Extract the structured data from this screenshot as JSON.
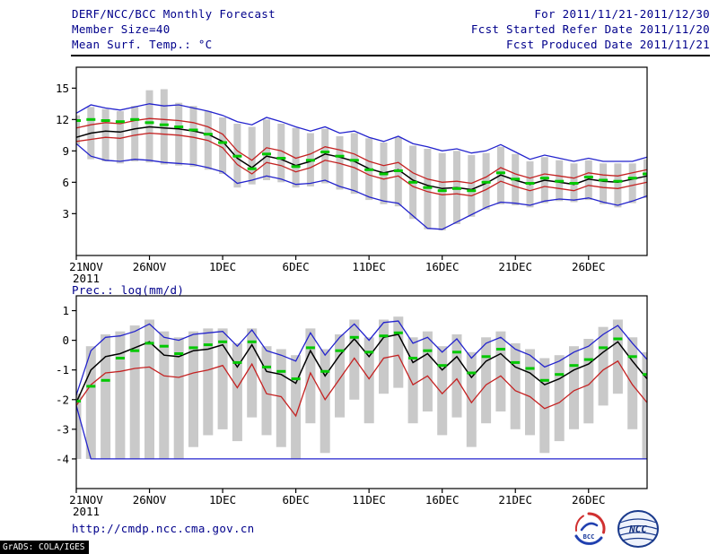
{
  "header": {
    "title": "DERF/NCC/BCC Monthly Forecast",
    "member_size": "Member Size=40",
    "forecast_range": "For 2011/11/21-2011/12/30",
    "refer_date": "Fcst Started Refer Date 2011/11/20",
    "produced_date": "Fcst Produced Date 2011/11/21"
  },
  "footer": {
    "url": "http://cmdp.ncc.cma.gov.cn",
    "grads_stamp": "GrADS: COLA/IGES",
    "logo_bcc": "BCC",
    "logo_ncc": "NCC"
  },
  "colors": {
    "header_text": "#00008b",
    "axis_text": "#000000",
    "envelope_blue": "#2323cd",
    "quartile_red": "#c42222",
    "mean_black": "#000000",
    "marker_green": "#00c800",
    "spread_gray": "#c9c9c9"
  },
  "chart_data": [
    {
      "type": "line",
      "label": "Mean Surf. Temp.: °C",
      "x_tick_labels": [
        "21NOV",
        "26NOV",
        "1DEC",
        "6DEC",
        "11DEC",
        "16DEC",
        "21DEC",
        "26DEC"
      ],
      "x_tick_days": [
        0,
        5,
        10,
        15,
        20,
        25,
        30,
        35
      ],
      "year_label": "2011",
      "y_ticks": [
        3,
        6,
        9,
        12,
        15
      ],
      "ylim": [
        -1,
        17
      ],
      "grid": false,
      "series": [
        {
          "name": "envelope-max",
          "color": "#2323cd",
          "values": [
            12.6,
            13.4,
            13.1,
            12.9,
            13.2,
            13.5,
            13.3,
            13.4,
            13.1,
            12.8,
            12.4,
            11.8,
            11.5,
            12.2,
            11.8,
            11.3,
            10.9,
            11.3,
            10.7,
            10.9,
            10.3,
            9.9,
            10.4,
            9.7,
            9.4,
            9.0,
            9.2,
            8.8,
            9.0,
            9.6,
            8.9,
            8.2,
            8.6,
            8.3,
            8.0,
            8.3,
            8.0,
            8.0,
            8.0,
            8.4
          ]
        },
        {
          "name": "upper-quartile",
          "color": "#c42222",
          "values": [
            11.2,
            11.5,
            11.7,
            11.6,
            11.9,
            12.1,
            12.0,
            11.9,
            11.7,
            11.3,
            10.6,
            9.0,
            8.1,
            9.3,
            9.0,
            8.3,
            8.7,
            9.4,
            9.1,
            8.7,
            8.0,
            7.6,
            7.9,
            6.9,
            6.3,
            6.0,
            6.1,
            5.9,
            6.5,
            7.4,
            6.8,
            6.4,
            6.8,
            6.6,
            6.4,
            6.9,
            6.7,
            6.6,
            6.9,
            7.2
          ]
        },
        {
          "name": "ensemble-mean",
          "color": "#000000",
          "values": [
            10.3,
            10.7,
            10.9,
            10.8,
            11.1,
            11.3,
            11.2,
            11.1,
            10.9,
            10.6,
            9.9,
            8.3,
            7.4,
            8.5,
            8.2,
            7.6,
            8.0,
            8.7,
            8.4,
            8.0,
            7.3,
            6.9,
            7.2,
            6.2,
            5.7,
            5.4,
            5.5,
            5.3,
            5.9,
            6.7,
            6.2,
            5.8,
            6.2,
            6.0,
            5.8,
            6.3,
            6.1,
            6.0,
            6.3,
            6.6
          ]
        },
        {
          "name": "lower-quartile",
          "color": "#c42222",
          "values": [
            9.9,
            10.1,
            10.3,
            10.2,
            10.5,
            10.7,
            10.6,
            10.5,
            10.3,
            10.0,
            9.3,
            7.7,
            6.8,
            7.9,
            7.6,
            7.0,
            7.4,
            8.1,
            7.8,
            7.4,
            6.7,
            6.3,
            6.6,
            5.6,
            5.1,
            4.8,
            4.9,
            4.7,
            5.3,
            6.1,
            5.6,
            5.2,
            5.6,
            5.4,
            5.2,
            5.7,
            5.5,
            5.4,
            5.7,
            6.0
          ]
        },
        {
          "name": "envelope-min",
          "color": "#2323cd",
          "values": [
            9.7,
            8.5,
            8.1,
            8.0,
            8.2,
            8.1,
            7.9,
            7.8,
            7.7,
            7.4,
            7.0,
            5.9,
            6.2,
            6.6,
            6.3,
            5.8,
            5.9,
            6.2,
            5.6,
            5.2,
            4.6,
            4.2,
            4.0,
            2.8,
            1.6,
            1.5,
            2.2,
            2.9,
            3.6,
            4.1,
            4.0,
            3.8,
            4.2,
            4.4,
            4.3,
            4.5,
            4.1,
            3.8,
            4.2,
            4.7
          ]
        }
      ],
      "green_markers": {
        "name": "daily-marker",
        "values": [
          11.9,
          12.0,
          11.9,
          11.8,
          12.0,
          11.7,
          11.5,
          11.3,
          11.0,
          10.6,
          9.8,
          8.5,
          7.3,
          8.7,
          8.3,
          7.5,
          8.1,
          8.9,
          8.5,
          8.1,
          7.2,
          6.8,
          7.1,
          6.0,
          5.5,
          5.2,
          5.4,
          5.2,
          6.0,
          6.9,
          6.3,
          5.9,
          6.4,
          6.1,
          5.9,
          6.5,
          6.2,
          6.1,
          6.4,
          6.8
        ]
      },
      "bars": {
        "name": "ensemble-spread",
        "min": [
          9.6,
          8.2,
          8.0,
          7.8,
          8.0,
          7.9,
          7.7,
          7.6,
          7.5,
          7.2,
          6.8,
          5.5,
          5.8,
          6.2,
          6.0,
          5.5,
          5.6,
          5.9,
          5.3,
          4.9,
          4.3,
          3.9,
          3.7,
          2.5,
          1.5,
          1.4,
          2.0,
          2.7,
          3.4,
          3.9,
          3.8,
          3.6,
          4.0,
          4.2,
          4.1,
          4.3,
          3.9,
          3.6,
          4.0,
          4.5
        ],
        "max": [
          12.4,
          13.2,
          13.0,
          12.8,
          13.3,
          14.8,
          14.9,
          13.6,
          13.3,
          12.8,
          12.2,
          11.6,
          11.3,
          12.0,
          11.6,
          11.2,
          10.7,
          11.1,
          10.4,
          10.7,
          10.2,
          9.8,
          10.3,
          9.5,
          9.2,
          8.8,
          9.0,
          8.6,
          8.8,
          9.4,
          8.7,
          8.0,
          8.4,
          8.1,
          7.8,
          8.1,
          7.8,
          7.8,
          7.8,
          8.2
        ]
      }
    },
    {
      "type": "line",
      "label": "Prec.: log(mm/d)",
      "x_tick_labels": [
        "21NOV",
        "26NOV",
        "1DEC",
        "6DEC",
        "11DEC",
        "16DEC",
        "21DEC",
        "26DEC"
      ],
      "x_tick_days": [
        0,
        5,
        10,
        15,
        20,
        25,
        30,
        35
      ],
      "year_label": "2011",
      "y_ticks": [
        1,
        0,
        -1,
        -2,
        -3,
        -4
      ],
      "ylim": [
        -5,
        1.5
      ],
      "grid": false,
      "series": [
        {
          "name": "envelope-max",
          "color": "#2323cd",
          "values": [
            -1.85,
            -0.35,
            0.1,
            0.15,
            0.3,
            0.55,
            0.1,
            0.0,
            0.2,
            0.25,
            0.3,
            -0.2,
            0.35,
            -0.35,
            -0.5,
            -0.7,
            0.25,
            -0.5,
            0.1,
            0.55,
            0.0,
            0.6,
            0.65,
            -0.1,
            0.1,
            -0.4,
            0.05,
            -0.6,
            -0.1,
            0.1,
            -0.3,
            -0.5,
            -0.9,
            -0.7,
            -0.4,
            -0.2,
            0.2,
            0.5,
            -0.1,
            -0.65
          ]
        },
        {
          "name": "ensemble-mean",
          "color": "#000000",
          "values": [
            -2.1,
            -1.0,
            -0.55,
            -0.45,
            -0.25,
            -0.05,
            -0.5,
            -0.55,
            -0.35,
            -0.3,
            -0.15,
            -0.9,
            -0.15,
            -1.05,
            -1.15,
            -1.45,
            -0.35,
            -1.2,
            -0.5,
            0.05,
            -0.55,
            0.1,
            0.2,
            -0.75,
            -0.45,
            -1.0,
            -0.55,
            -1.25,
            -0.7,
            -0.45,
            -0.9,
            -1.1,
            -1.5,
            -1.3,
            -1.0,
            -0.8,
            -0.4,
            -0.05,
            -0.7,
            -1.3
          ]
        },
        {
          "name": "lower-quartile",
          "color": "#c42222",
          "values": [
            -2.2,
            -1.5,
            -1.1,
            -1.05,
            -0.95,
            -0.9,
            -1.2,
            -1.25,
            -1.1,
            -1.0,
            -0.85,
            -1.6,
            -0.8,
            -1.8,
            -1.9,
            -2.55,
            -1.1,
            -2.0,
            -1.3,
            -0.6,
            -1.3,
            -0.6,
            -0.5,
            -1.5,
            -1.2,
            -1.8,
            -1.3,
            -2.1,
            -1.5,
            -1.2,
            -1.7,
            -1.9,
            -2.3,
            -2.1,
            -1.7,
            -1.5,
            -1.0,
            -0.7,
            -1.5,
            -2.1
          ]
        },
        {
          "name": "envelope-min",
          "color": "#2323cd",
          "values": [
            -2.2,
            -4,
            -4,
            -4,
            -4,
            -4,
            -4,
            -4,
            -4,
            -4,
            -4,
            -4,
            -4,
            -4,
            -4,
            -4,
            -4,
            -4,
            -4,
            -4,
            -4,
            -4,
            -4,
            -4,
            -4,
            -4,
            -4,
            -4,
            -4,
            -4,
            -4,
            -4,
            -4,
            -4,
            -4,
            -4,
            -4,
            -4,
            -4,
            -4
          ]
        }
      ],
      "green_markers": {
        "name": "daily-marker",
        "values": [
          -2.05,
          -1.55,
          -1.35,
          -0.6,
          -0.35,
          -0.1,
          -0.2,
          -0.45,
          -0.25,
          -0.15,
          -0.05,
          -0.75,
          -0.05,
          -0.9,
          -1.05,
          -1.3,
          -0.25,
          -1.05,
          -0.35,
          0.1,
          -0.4,
          0.15,
          0.25,
          -0.6,
          -0.35,
          -0.85,
          -0.4,
          -1.1,
          -0.55,
          -0.3,
          -0.75,
          -0.95,
          -1.35,
          -1.15,
          -0.85,
          -0.65,
          -0.25,
          0.05,
          -0.55,
          -1.15
        ]
      },
      "bars": {
        "name": "ensemble-spread",
        "min": [
          -4,
          -4,
          -4,
          -4,
          -4,
          -4,
          -4,
          -4,
          -3.6,
          -3.2,
          -3.0,
          -3.4,
          -2.6,
          -3.2,
          -3.6,
          -4,
          -2.8,
          -3.8,
          -2.6,
          -2.0,
          -2.8,
          -1.8,
          -1.6,
          -2.8,
          -2.4,
          -3.2,
          -2.6,
          -3.6,
          -2.8,
          -2.4,
          -3.0,
          -3.2,
          -3.8,
          -3.4,
          -3.0,
          -2.8,
          -2.2,
          -1.8,
          -3.0,
          -4
        ],
        "max": [
          -1.8,
          -0.2,
          0.2,
          0.3,
          0.5,
          0.7,
          0.3,
          0.1,
          0.3,
          0.4,
          0.4,
          -0.1,
          0.4,
          -0.2,
          -0.3,
          -0.5,
          0.4,
          -0.3,
          0.2,
          0.7,
          0.1,
          0.7,
          0.8,
          0.1,
          0.3,
          -0.2,
          0.2,
          -0.4,
          0.1,
          0.3,
          -0.1,
          -0.3,
          -0.6,
          -0.5,
          -0.2,
          0.05,
          0.45,
          0.7,
          0.1,
          -0.4
        ]
      }
    }
  ]
}
